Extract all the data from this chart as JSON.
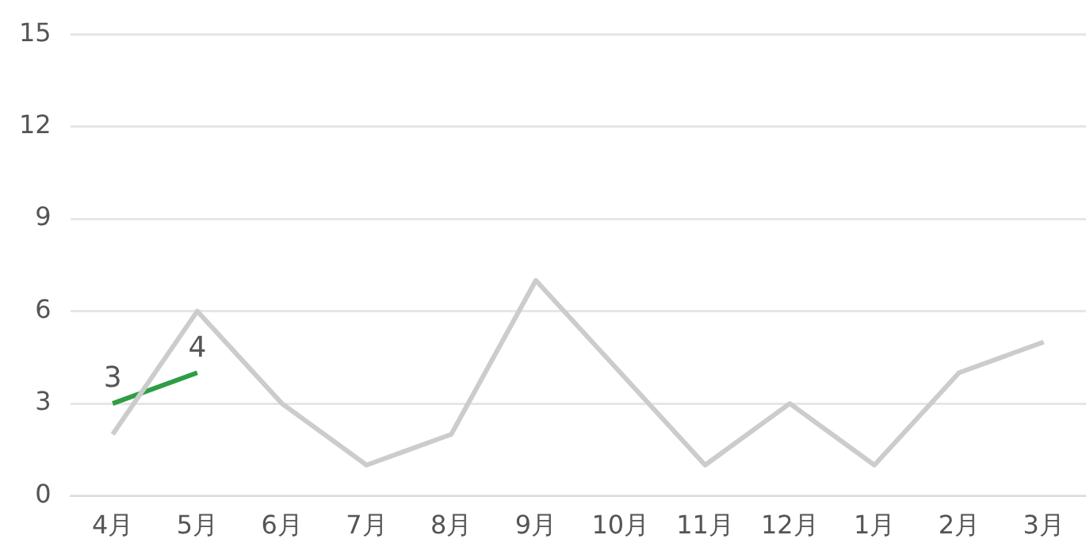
{
  "chart_data": {
    "type": "line",
    "categories": [
      "4月",
      "5月",
      "6月",
      "7月",
      "8月",
      "9月",
      "10月",
      "11月",
      "12月",
      "1月",
      "2月",
      "3月"
    ],
    "series": [
      {
        "color": "#cccccc",
        "values": [
          2,
          6,
          3,
          1,
          2,
          7,
          4,
          1,
          3,
          1,
          4,
          5
        ]
      },
      {
        "color": "#2e9e44",
        "values": [
          3,
          4,
          null,
          null,
          null,
          null,
          null,
          null,
          null,
          null,
          null,
          null
        ],
        "value_labels": [
          "3",
          "4",
          null,
          null,
          null,
          null,
          null,
          null,
          null,
          null,
          null,
          null
        ]
      }
    ],
    "ylim": [
      0,
      15
    ],
    "yticks": [
      0,
      3,
      6,
      9,
      12,
      15
    ],
    "grid": "y",
    "legend": false,
    "marker": "none",
    "line_style": "solid"
  }
}
